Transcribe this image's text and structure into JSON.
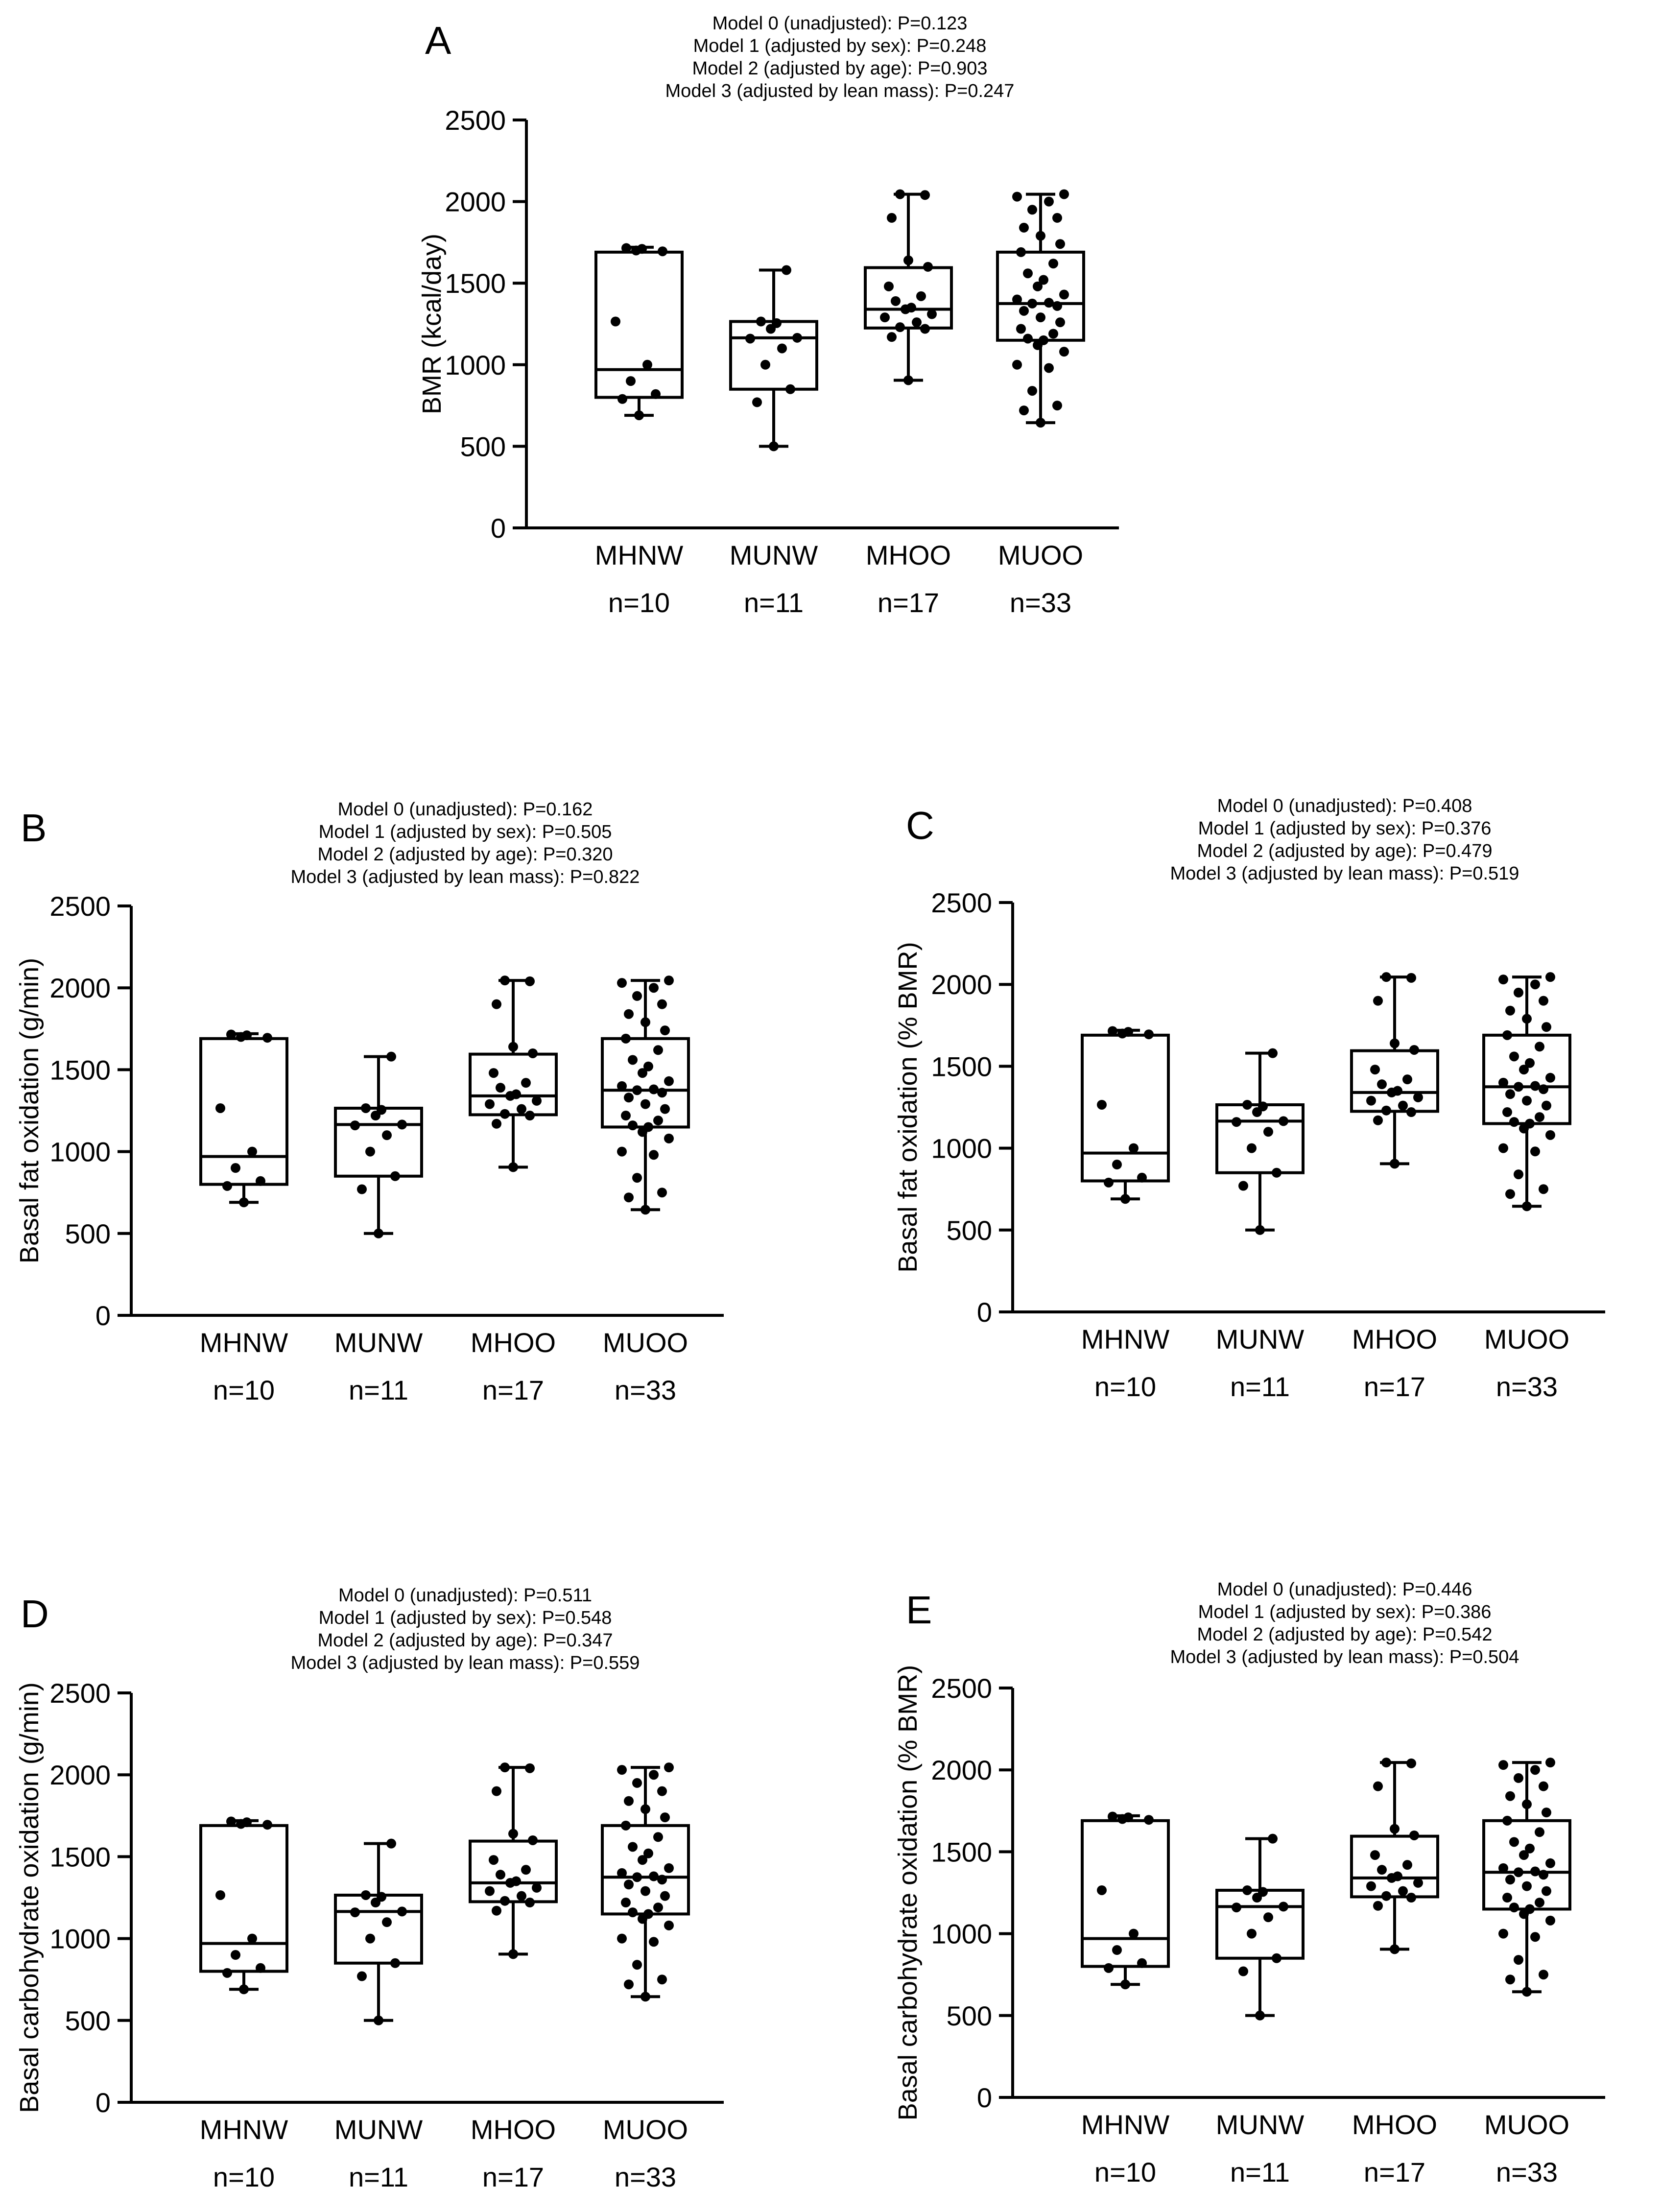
{
  "chart_data": [
    {
      "id": "A",
      "type": "boxplot",
      "panel_label": "A",
      "title_lines": [
        "Model 0 (unadjusted): P=0.123",
        "Model 1 (adjusted by sex): P=0.248",
        "Model 2 (adjusted by age): P=0.903",
        "Model 3 (adjusted by lean mass): P=0.247"
      ],
      "ylabel": "BMR (kcal/day)",
      "ylim": [
        0,
        2500
      ],
      "yticks": [
        "0",
        "500",
        "1000",
        "1500",
        "2000",
        "2500"
      ],
      "categories": [
        "MHNW",
        "MUNW",
        "MHOO",
        "MUOO"
      ],
      "n_labels": [
        "n=10",
        "n=11",
        "n=17",
        "n=33"
      ],
      "groups": [
        {
          "min": 690,
          "q1": 800,
          "median": 970,
          "q3": 1690,
          "max": 1720,
          "points": [
            690,
            790,
            820,
            900,
            1000,
            1265,
            1695,
            1700,
            1710,
            1715
          ]
        },
        {
          "min": 500,
          "q1": 850,
          "median": 1165,
          "q3": 1265,
          "max": 1580,
          "points": [
            500,
            770,
            850,
            1000,
            1100,
            1160,
            1165,
            1220,
            1255,
            1265,
            1580
          ]
        },
        {
          "min": 905,
          "q1": 1225,
          "median": 1340,
          "q3": 1595,
          "max": 2045,
          "points": [
            905,
            1170,
            1220,
            1230,
            1260,
            1290,
            1310,
            1340,
            1350,
            1390,
            1420,
            1480,
            1600,
            1640,
            1900,
            2040,
            2045
          ]
        },
        {
          "min": 645,
          "q1": 1150,
          "median": 1375,
          "q3": 1690,
          "max": 2045,
          "points": [
            645,
            720,
            750,
            840,
            980,
            1000,
            1080,
            1120,
            1150,
            1160,
            1190,
            1220,
            1260,
            1290,
            1330,
            1360,
            1375,
            1380,
            1400,
            1430,
            1480,
            1520,
            1560,
            1620,
            1690,
            1740,
            1790,
            1840,
            1900,
            1950,
            2000,
            2030,
            2045
          ]
        }
      ]
    },
    {
      "id": "B",
      "type": "boxplot",
      "panel_label": "B",
      "title_lines": [
        "Model 0 (unadjusted): P=0.162",
        "Model 1 (adjusted by sex): P=0.505",
        "Model 2 (adjusted by age): P=0.320",
        "Model 3 (adjusted by lean mass): P=0.822"
      ],
      "ylabel": "Basal fat oxidation (g/min)",
      "ylim": [
        0,
        2500
      ],
      "yticks": [
        "0",
        "500",
        "1000",
        "1500",
        "2000",
        "2500"
      ],
      "categories": [
        "MHNW",
        "MUNW",
        "MHOO",
        "MUOO"
      ],
      "n_labels": [
        "n=10",
        "n=11",
        "n=17",
        "n=33"
      ],
      "groups": [
        {
          "min": 690,
          "q1": 800,
          "median": 970,
          "q3": 1690,
          "max": 1720,
          "points": [
            690,
            790,
            820,
            900,
            1000,
            1265,
            1695,
            1700,
            1710,
            1715
          ]
        },
        {
          "min": 500,
          "q1": 850,
          "median": 1165,
          "q3": 1265,
          "max": 1580,
          "points": [
            500,
            770,
            850,
            1000,
            1100,
            1160,
            1165,
            1220,
            1255,
            1265,
            1580
          ]
        },
        {
          "min": 905,
          "q1": 1225,
          "median": 1340,
          "q3": 1595,
          "max": 2045,
          "points": [
            905,
            1170,
            1220,
            1230,
            1260,
            1290,
            1310,
            1340,
            1350,
            1390,
            1420,
            1480,
            1600,
            1640,
            1900,
            2040,
            2045
          ]
        },
        {
          "min": 645,
          "q1": 1150,
          "median": 1375,
          "q3": 1690,
          "max": 2045,
          "points": [
            645,
            720,
            750,
            840,
            980,
            1000,
            1080,
            1120,
            1150,
            1160,
            1190,
            1220,
            1260,
            1290,
            1330,
            1360,
            1375,
            1380,
            1400,
            1430,
            1480,
            1520,
            1560,
            1620,
            1690,
            1740,
            1790,
            1840,
            1900,
            1950,
            2000,
            2030,
            2045
          ]
        }
      ]
    },
    {
      "id": "C",
      "type": "boxplot",
      "panel_label": "C",
      "title_lines": [
        "Model 0 (unadjusted): P=0.408",
        "Model 1 (adjusted by sex): P=0.376",
        "Model 2 (adjusted by age): P=0.479",
        "Model 3 (adjusted by lean mass): P=0.519"
      ],
      "ylabel": "Basal fat oxidation (% BMR)",
      "ylim": [
        0,
        2500
      ],
      "yticks": [
        "0",
        "500",
        "1000",
        "1500",
        "2000",
        "2500"
      ],
      "categories": [
        "MHNW",
        "MUNW",
        "MHOO",
        "MUOO"
      ],
      "n_labels": [
        "n=10",
        "n=11",
        "n=17",
        "n=33"
      ],
      "groups": [
        {
          "min": 690,
          "q1": 800,
          "median": 970,
          "q3": 1690,
          "max": 1720,
          "points": [
            690,
            790,
            820,
            900,
            1000,
            1265,
            1695,
            1700,
            1710,
            1715
          ]
        },
        {
          "min": 500,
          "q1": 850,
          "median": 1165,
          "q3": 1265,
          "max": 1580,
          "points": [
            500,
            770,
            850,
            1000,
            1100,
            1160,
            1165,
            1220,
            1255,
            1265,
            1580
          ]
        },
        {
          "min": 905,
          "q1": 1225,
          "median": 1340,
          "q3": 1595,
          "max": 2045,
          "points": [
            905,
            1170,
            1220,
            1230,
            1260,
            1290,
            1310,
            1340,
            1350,
            1390,
            1420,
            1480,
            1600,
            1640,
            1900,
            2040,
            2045
          ]
        },
        {
          "min": 645,
          "q1": 1150,
          "median": 1375,
          "q3": 1690,
          "max": 2045,
          "points": [
            645,
            720,
            750,
            840,
            980,
            1000,
            1080,
            1120,
            1150,
            1160,
            1190,
            1220,
            1260,
            1290,
            1330,
            1360,
            1375,
            1380,
            1400,
            1430,
            1480,
            1520,
            1560,
            1620,
            1690,
            1740,
            1790,
            1840,
            1900,
            1950,
            2000,
            2030,
            2045
          ]
        }
      ]
    },
    {
      "id": "D",
      "type": "boxplot",
      "panel_label": "D",
      "title_lines": [
        "Model 0 (unadjusted): P=0.511",
        "Model 1 (adjusted by sex): P=0.548",
        "Model 2 (adjusted by age): P=0.347",
        "Model 3 (adjusted by lean mass): P=0.559"
      ],
      "ylabel": "Basal carbohydrate oxidation (g/min)",
      "ylim": [
        0,
        2500
      ],
      "yticks": [
        "0",
        "500",
        "1000",
        "1500",
        "2000",
        "2500"
      ],
      "categories": [
        "MHNW",
        "MUNW",
        "MHOO",
        "MUOO"
      ],
      "n_labels": [
        "n=10",
        "n=11",
        "n=17",
        "n=33"
      ],
      "groups": [
        {
          "min": 690,
          "q1": 800,
          "median": 970,
          "q3": 1690,
          "max": 1720,
          "points": [
            690,
            790,
            820,
            900,
            1000,
            1265,
            1695,
            1700,
            1710,
            1715
          ]
        },
        {
          "min": 500,
          "q1": 850,
          "median": 1165,
          "q3": 1265,
          "max": 1580,
          "points": [
            500,
            770,
            850,
            1000,
            1100,
            1160,
            1165,
            1220,
            1255,
            1265,
            1580
          ]
        },
        {
          "min": 905,
          "q1": 1225,
          "median": 1340,
          "q3": 1595,
          "max": 2045,
          "points": [
            905,
            1170,
            1220,
            1230,
            1260,
            1290,
            1310,
            1340,
            1350,
            1390,
            1420,
            1480,
            1600,
            1640,
            1900,
            2040,
            2045
          ]
        },
        {
          "min": 645,
          "q1": 1150,
          "median": 1375,
          "q3": 1690,
          "max": 2045,
          "points": [
            645,
            720,
            750,
            840,
            980,
            1000,
            1080,
            1120,
            1150,
            1160,
            1190,
            1220,
            1260,
            1290,
            1330,
            1360,
            1375,
            1380,
            1400,
            1430,
            1480,
            1520,
            1560,
            1620,
            1690,
            1740,
            1790,
            1840,
            1900,
            1950,
            2000,
            2030,
            2045
          ]
        }
      ]
    },
    {
      "id": "E",
      "type": "boxplot",
      "panel_label": "E",
      "title_lines": [
        "Model 0 (unadjusted): P=0.446",
        "Model 1 (adjusted by sex): P=0.386",
        "Model 2 (adjusted by age): P=0.542",
        "Model 3 (adjusted by lean mass): P=0.504"
      ],
      "ylabel": "Basal carbohydrate oxidation (% BMR)",
      "ylim": [
        0,
        2500
      ],
      "yticks": [
        "0",
        "500",
        "1000",
        "1500",
        "2000",
        "2500"
      ],
      "categories": [
        "MHNW",
        "MUNW",
        "MHOO",
        "MUOO"
      ],
      "n_labels": [
        "n=10",
        "n=11",
        "n=17",
        "n=33"
      ],
      "groups": [
        {
          "min": 690,
          "q1": 800,
          "median": 970,
          "q3": 1690,
          "max": 1720,
          "points": [
            690,
            790,
            820,
            900,
            1000,
            1265,
            1695,
            1700,
            1710,
            1715
          ]
        },
        {
          "min": 500,
          "q1": 850,
          "median": 1165,
          "q3": 1265,
          "max": 1580,
          "points": [
            500,
            770,
            850,
            1000,
            1100,
            1160,
            1165,
            1220,
            1255,
            1265,
            1580
          ]
        },
        {
          "min": 905,
          "q1": 1225,
          "median": 1340,
          "q3": 1595,
          "max": 2045,
          "points": [
            905,
            1170,
            1220,
            1230,
            1260,
            1290,
            1310,
            1340,
            1350,
            1390,
            1420,
            1480,
            1600,
            1640,
            1900,
            2040,
            2045
          ]
        },
        {
          "min": 645,
          "q1": 1150,
          "median": 1375,
          "q3": 1690,
          "max": 2045,
          "points": [
            645,
            720,
            750,
            840,
            980,
            1000,
            1080,
            1120,
            1150,
            1160,
            1190,
            1220,
            1260,
            1290,
            1330,
            1360,
            1375,
            1380,
            1400,
            1430,
            1480,
            1520,
            1560,
            1620,
            1690,
            1740,
            1790,
            1840,
            1900,
            1950,
            2000,
            2030,
            2045
          ]
        }
      ]
    }
  ]
}
